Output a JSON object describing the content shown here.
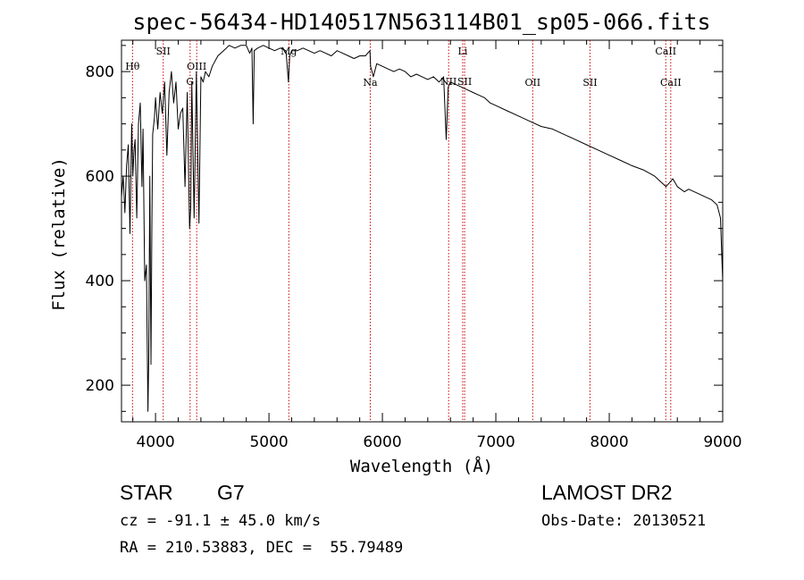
{
  "chart_data": {
    "type": "line",
    "title": "spec-56434-HD140517N563114B01_sp05-066.fits",
    "xlabel": "Wavelength (Å)",
    "ylabel": "Flux (relative)",
    "xlim": [
      3700,
      9000
    ],
    "ylim": [
      130,
      860
    ],
    "x_ticks": [
      4000,
      5000,
      6000,
      7000,
      8000,
      9000
    ],
    "y_ticks": [
      200,
      400,
      600,
      800
    ],
    "grid": false,
    "line_color": "#000000",
    "marker_color": "#cc0000",
    "series": [
      {
        "name": "spectrum",
        "x": [
          3700,
          3715,
          3730,
          3745,
          3760,
          3775,
          3790,
          3800,
          3810,
          3820,
          3835,
          3850,
          3865,
          3880,
          3890,
          3905,
          3920,
          3933,
          3940,
          3950,
          3960,
          3968,
          3975,
          3990,
          4000,
          4020,
          4040,
          4060,
          4080,
          4100,
          4120,
          4140,
          4160,
          4180,
          4200,
          4220,
          4240,
          4260,
          4280,
          4300,
          4310,
          4320,
          4340,
          4360,
          4383,
          4400,
          4420,
          4440,
          4470,
          4500,
          4550,
          4600,
          4650,
          4700,
          4750,
          4800,
          4830,
          4850,
          4861,
          4870,
          4900,
          4950,
          5000,
          5050,
          5100,
          5150,
          5172,
          5183,
          5200,
          5250,
          5300,
          5350,
          5400,
          5450,
          5500,
          5550,
          5600,
          5650,
          5700,
          5750,
          5800,
          5850,
          5890,
          5896,
          5920,
          5950,
          6000,
          6050,
          6100,
          6150,
          6200,
          6250,
          6300,
          6350,
          6400,
          6450,
          6500,
          6540,
          6563,
          6580,
          6600,
          6650,
          6700,
          6750,
          6800,
          6850,
          6900,
          6950,
          7000,
          7100,
          7200,
          7300,
          7400,
          7500,
          7600,
          7700,
          7800,
          7900,
          8000,
          8100,
          8200,
          8300,
          8400,
          8500,
          8542,
          8560,
          8600,
          8662,
          8700,
          8800,
          8900,
          8950,
          8980,
          9000
        ],
        "values": [
          560,
          600,
          530,
          620,
          660,
          490,
          700,
          600,
          650,
          670,
          520,
          700,
          740,
          580,
          690,
          400,
          430,
          150,
          250,
          600,
          240,
          500,
          680,
          710,
          750,
          690,
          760,
          720,
          780,
          640,
          760,
          800,
          740,
          780,
          690,
          720,
          730,
          580,
          760,
          500,
          540,
          780,
          520,
          800,
          510,
          790,
          780,
          800,
          790,
          810,
          830,
          840,
          850,
          845,
          850,
          850,
          835,
          845,
          700,
          840,
          845,
          850,
          845,
          840,
          845,
          840,
          780,
          830,
          840,
          840,
          845,
          840,
          835,
          840,
          835,
          830,
          840,
          835,
          830,
          825,
          830,
          830,
          840,
          810,
          790,
          815,
          810,
          805,
          800,
          805,
          800,
          790,
          795,
          790,
          785,
          790,
          780,
          790,
          670,
          770,
          780,
          775,
          770,
          765,
          760,
          755,
          750,
          740,
          735,
          725,
          715,
          705,
          695,
          690,
          680,
          670,
          660,
          650,
          640,
          630,
          620,
          612,
          600,
          580,
          590,
          595,
          580,
          570,
          575,
          565,
          555,
          545,
          520,
          400
        ]
      }
    ],
    "line_markers": [
      {
        "label": "Hθ",
        "x": 3797,
        "row": "upper"
      },
      {
        "label": "SII",
        "x": 4068,
        "row": "top"
      },
      {
        "label": "OIII",
        "x": 4363,
        "row": "upper"
      },
      {
        "label": "G",
        "x": 4305,
        "row": "mid"
      },
      {
        "label": "Mg",
        "x": 5175,
        "row": "top"
      },
      {
        "label": "Na",
        "x": 5893,
        "row": "lower"
      },
      {
        "label": "NII",
        "x": 6584,
        "row": "mid"
      },
      {
        "label": "Li",
        "x": 6708,
        "row": "top"
      },
      {
        "label": "SII",
        "x": 6725,
        "row": "mid"
      },
      {
        "label": "OII",
        "x": 7325,
        "row": "lower"
      },
      {
        "label": "SII",
        "x": 7830,
        "row": "lower"
      },
      {
        "label": "CaII",
        "x": 8498,
        "row": "top"
      },
      {
        "label": "CaII",
        "x": 8542,
        "row": "lower"
      }
    ]
  },
  "footer": {
    "object_type": "STAR",
    "subclass": "G7",
    "survey": "LAMOST DR2",
    "redshift_text": "cz = -91.1 ± 45.0 km/s",
    "obs_date": "Obs-Date: 20130521",
    "coords": "RA = 210.53883, DEC =  55.79489"
  }
}
